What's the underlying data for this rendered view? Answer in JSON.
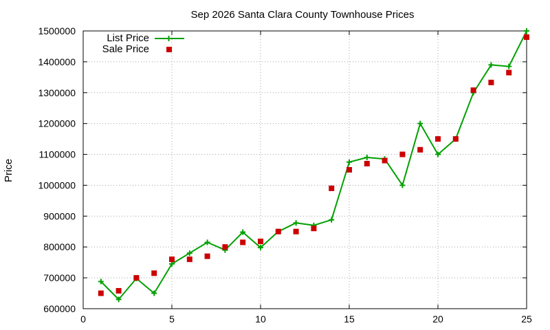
{
  "chart_data": {
    "type": "line",
    "title": "Sep 2026 Santa Clara County Townhouse Prices",
    "xlabel": "",
    "ylabel": "Price",
    "xlim": [
      0,
      25
    ],
    "ylim": [
      600000,
      1500000
    ],
    "xticks": [
      0,
      5,
      10,
      15,
      20,
      25
    ],
    "yticks": [
      600000,
      700000,
      800000,
      900000,
      1000000,
      1100000,
      1200000,
      1300000,
      1400000,
      1500000
    ],
    "grid": true,
    "legend_position": "top-left",
    "series": [
      {
        "name": "List Price",
        "style": "line+cross",
        "color": "#00a000",
        "x": [
          1,
          2,
          3,
          4,
          5,
          6,
          7,
          8,
          9,
          10,
          11,
          12,
          13,
          14,
          15,
          16,
          17,
          18,
          19,
          20,
          21,
          22,
          23,
          24,
          25
        ],
        "y": [
          688000,
          630000,
          698000,
          650000,
          745000,
          780000,
          815000,
          790000,
          848000,
          798000,
          850000,
          878000,
          870000,
          888000,
          1075000,
          1090000,
          1085000,
          1000000,
          1200000,
          1100000,
          1150000,
          1300000,
          1390000,
          1385000,
          1500000
        ]
      },
      {
        "name": "Sale Price",
        "style": "square",
        "color": "#cc0000",
        "x": [
          1,
          2,
          3,
          4,
          5,
          6,
          7,
          8,
          9,
          10,
          11,
          12,
          13,
          14,
          15,
          16,
          17,
          18,
          19,
          20,
          21,
          22,
          23,
          24,
          25
        ],
        "y": [
          650000,
          658000,
          700000,
          715000,
          760000,
          760000,
          770000,
          800000,
          815000,
          818000,
          850000,
          850000,
          860000,
          990000,
          1050000,
          1070000,
          1080000,
          1100000,
          1115000,
          1150000,
          1150000,
          1308000,
          1333000,
          1365000,
          1480000
        ]
      }
    ]
  }
}
